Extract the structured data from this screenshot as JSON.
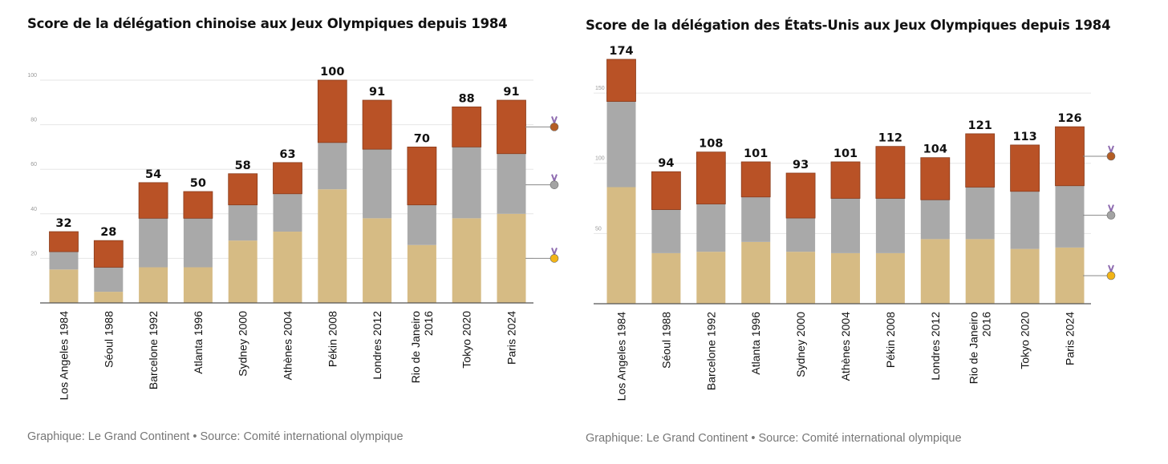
{
  "chart_data": [
    {
      "id": "china",
      "type": "bar",
      "stacked": true,
      "title": "Score de la délégation chinoise aux Jeux Olympiques depuis 1984",
      "source": "Graphique: Le Grand Continent • Source: Comité international olympique",
      "categories": [
        [
          "Los Angeles 1984"
        ],
        [
          "Séoul 1988"
        ],
        [
          "Barcelone 1992"
        ],
        [
          "Atlanta 1996"
        ],
        [
          "Sydney 2000"
        ],
        [
          "Athènes 2004"
        ],
        [
          "Pékin 2008"
        ],
        [
          "Londres 2012"
        ],
        [
          "Rio de Janeiro",
          "2016"
        ],
        [
          "Tokyo 2020"
        ],
        [
          "Paris 2024"
        ]
      ],
      "series": [
        {
          "key": "gold",
          "values": [
            15,
            5,
            16,
            16,
            28,
            32,
            51,
            38,
            26,
            38,
            40
          ]
        },
        {
          "key": "silver",
          "values": [
            8,
            11,
            22,
            22,
            16,
            17,
            21,
            31,
            18,
            32,
            27
          ]
        },
        {
          "key": "bronze",
          "values": [
            9,
            12,
            16,
            12,
            14,
            14,
            28,
            22,
            26,
            18,
            24
          ]
        }
      ],
      "totals": [
        32,
        28,
        54,
        50,
        58,
        63,
        100,
        91,
        70,
        88,
        91
      ],
      "ylim": [
        0,
        100
      ],
      "yticks": [
        20,
        40,
        60,
        80,
        100
      ],
      "grid": true,
      "legend_medal_values": [
        {
          "medal": "bronze",
          "y": 79
        },
        {
          "medal": "silver",
          "y": 53
        },
        {
          "medal": "gold",
          "y": 20
        }
      ]
    },
    {
      "id": "usa",
      "type": "bar",
      "stacked": true,
      "title": "Score de la délégation des États-Unis aux Jeux Olympiques depuis 1984",
      "source": "Graphique: Le Grand Continent • Source: Comité international olympique",
      "categories": [
        [
          "Los Angeles 1984"
        ],
        [
          "Séoul 1988"
        ],
        [
          "Barcelone 1992"
        ],
        [
          "Atlanta 1996"
        ],
        [
          "Sydney 2000"
        ],
        [
          "Athènes 2004"
        ],
        [
          "Pékin 2008"
        ],
        [
          "Londres 2012"
        ],
        [
          "Rio de Janeiro",
          "2016"
        ],
        [
          "Tokyo 2020"
        ],
        [
          "Paris 2024"
        ]
      ],
      "series": [
        {
          "key": "gold",
          "values": [
            83,
            36,
            37,
            44,
            37,
            36,
            36,
            46,
            46,
            39,
            40
          ]
        },
        {
          "key": "silver",
          "values": [
            61,
            31,
            34,
            32,
            24,
            39,
            39,
            28,
            37,
            41,
            44
          ]
        },
        {
          "key": "bronze",
          "values": [
            30,
            27,
            37,
            25,
            32,
            26,
            37,
            30,
            38,
            33,
            42
          ]
        }
      ],
      "totals": [
        174,
        94,
        108,
        101,
        93,
        101,
        112,
        104,
        121,
        113,
        126
      ],
      "ylim": [
        0,
        174
      ],
      "yticks": [
        50,
        100,
        150
      ],
      "grid": true,
      "legend_medal_values": [
        {
          "medal": "bronze",
          "y": 105
        },
        {
          "medal": "silver",
          "y": 63
        },
        {
          "medal": "gold",
          "y": 20
        }
      ]
    }
  ],
  "colors": {
    "gold": "#d6bb84",
    "silver": "#a9a9a9",
    "bronze": "#b95226",
    "bar_edge": "#8a3c1c",
    "grid": "#e6e6e6",
    "axis": "#555555",
    "tick_label": "#999999",
    "total_label": "#111111",
    "medal_gold": "#f2b416",
    "medal_silver": "#a3a3a3",
    "medal_bronze": "#b45d25",
    "ribbon": "#8e6bb0"
  }
}
